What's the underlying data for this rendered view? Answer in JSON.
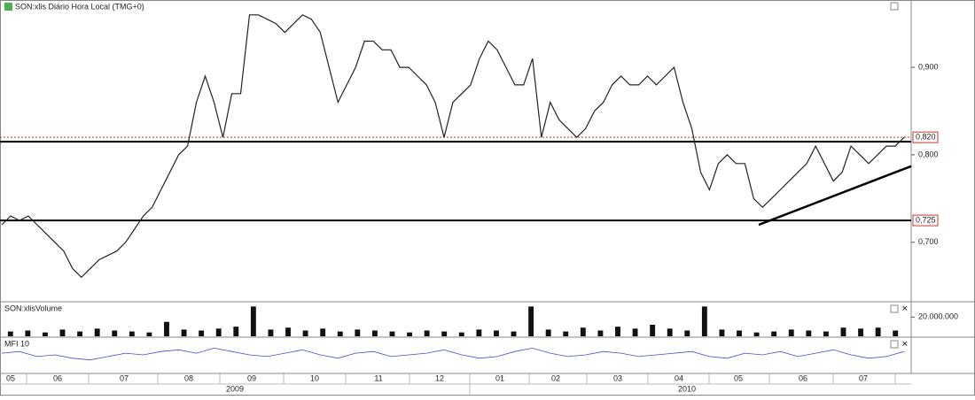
{
  "chart_data": [
    {
      "type": "line",
      "title": "SON:xlis Diário Hora Local (TMG+0)",
      "color": "#222222",
      "values": [
        0.72,
        0.73,
        0.725,
        0.73,
        0.72,
        0.71,
        0.7,
        0.69,
        0.67,
        0.66,
        0.67,
        0.68,
        0.685,
        0.69,
        0.7,
        0.715,
        0.73,
        0.74,
        0.76,
        0.78,
        0.8,
        0.81,
        0.86,
        0.89,
        0.86,
        0.82,
        0.87,
        0.87,
        0.96,
        0.96,
        0.955,
        0.95,
        0.94,
        0.95,
        0.96,
        0.955,
        0.94,
        0.9,
        0.86,
        0.88,
        0.9,
        0.93,
        0.93,
        0.92,
        0.92,
        0.9,
        0.9,
        0.89,
        0.88,
        0.86,
        0.82,
        0.86,
        0.87,
        0.88,
        0.91,
        0.93,
        0.92,
        0.9,
        0.88,
        0.88,
        0.91,
        0.82,
        0.86,
        0.84,
        0.83,
        0.82,
        0.83,
        0.85,
        0.86,
        0.88,
        0.89,
        0.88,
        0.88,
        0.89,
        0.88,
        0.89,
        0.9,
        0.86,
        0.83,
        0.78,
        0.76,
        0.79,
        0.8,
        0.79,
        0.79,
        0.75,
        0.74,
        0.75,
        0.76,
        0.77,
        0.78,
        0.79,
        0.81,
        0.79,
        0.77,
        0.78,
        0.81,
        0.8,
        0.79,
        0.8,
        0.81,
        0.81,
        0.82
      ],
      "ylim": [
        0.633,
        0.977
      ],
      "yticks": [
        {
          "value": 0.7,
          "label": "0,700"
        },
        {
          "value": 0.8,
          "label": "0,800"
        },
        {
          "value": 0.9,
          "label": "0,900"
        }
      ],
      "hlines": [
        {
          "value": 0.82,
          "label": "0,820",
          "color": "#c0392b",
          "style": "dotted"
        },
        {
          "value": 0.815,
          "color": "#000000",
          "style": "solid"
        },
        {
          "value": 0.725,
          "label": "0,725",
          "color": "#000000",
          "style": "solid"
        }
      ],
      "trendline": [
        0.72,
        0.787
      ],
      "months": [
        "05",
        "06",
        "07",
        "08",
        "09",
        "10",
        "11",
        "12",
        "01",
        "02",
        "03",
        "04",
        "05",
        "06",
        "07"
      ],
      "years": [
        "2009",
        "2010"
      ]
    },
    {
      "type": "bar",
      "title": "SON:xlisVolume",
      "color": "#111111",
      "values": [
        5000000,
        6000000,
        4000000,
        7000000,
        5000000,
        8000000,
        6000000,
        5000000,
        4000000,
        15000000,
        7000000,
        6000000,
        8000000,
        10000000,
        31000000,
        7000000,
        9000000,
        6000000,
        8000000,
        5000000,
        7000000,
        6000000,
        5000000,
        4000000,
        6000000,
        5000000,
        4000000,
        7000000,
        6000000,
        5000000,
        31000000,
        7000000,
        5000000,
        9000000,
        6000000,
        10000000,
        8000000,
        12000000,
        8000000,
        6000000,
        31000000,
        7000000,
        6000000,
        4000000,
        5000000,
        7000000,
        6000000,
        5000000,
        9000000,
        8000000,
        9000000,
        6000000
      ],
      "ylim": [
        0,
        35000000
      ],
      "yticks": [
        {
          "value": 20000000,
          "label": "20.000.000"
        }
      ]
    },
    {
      "type": "line",
      "title": "MFI 10",
      "color": "#4a4ad8",
      "values": [
        55,
        60,
        45,
        50,
        40,
        35,
        45,
        55,
        50,
        60,
        65,
        55,
        70,
        60,
        50,
        45,
        55,
        65,
        50,
        40,
        55,
        60,
        45,
        50,
        55,
        65,
        50,
        40,
        45,
        60,
        70,
        55,
        45,
        50,
        60,
        55,
        45,
        50,
        55,
        60,
        45,
        40,
        55,
        50,
        60,
        45,
        55,
        65,
        50,
        40,
        45,
        60
      ],
      "ylim": [
        0,
        100
      ]
    }
  ]
}
